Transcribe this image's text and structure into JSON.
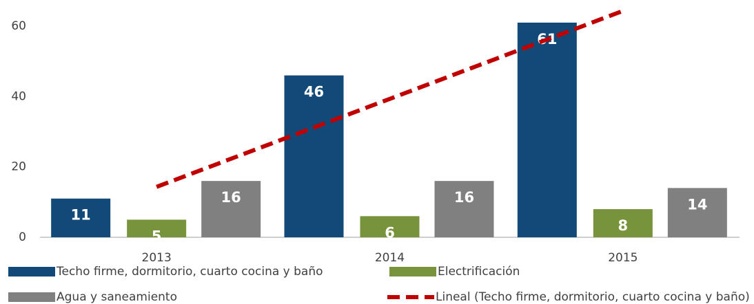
{
  "chart_data": {
    "type": "bar",
    "categories": [
      "2013",
      "2014",
      "2015"
    ],
    "series": [
      {
        "name": "Techo firme, dormitorio, cuarto cocina y baño",
        "color": "#114a78",
        "values": [
          11,
          46,
          61
        ]
      },
      {
        "name": "Electrificación",
        "color": "#77933c",
        "values": [
          5,
          6,
          8
        ]
      },
      {
        "name": "Agua y saneamiento",
        "color": "#808080",
        "values": [
          16,
          16,
          14
        ]
      }
    ],
    "trendline": {
      "name": "Lineal (Techo firme, dormitorio, cuarto cocina y baño)",
      "color": "#c00000",
      "values": [
        14.33,
        39.33,
        64.33
      ]
    },
    "ylim": [
      0,
      60
    ],
    "yticks": [
      0,
      20,
      40,
      60
    ],
    "grid": false
  }
}
